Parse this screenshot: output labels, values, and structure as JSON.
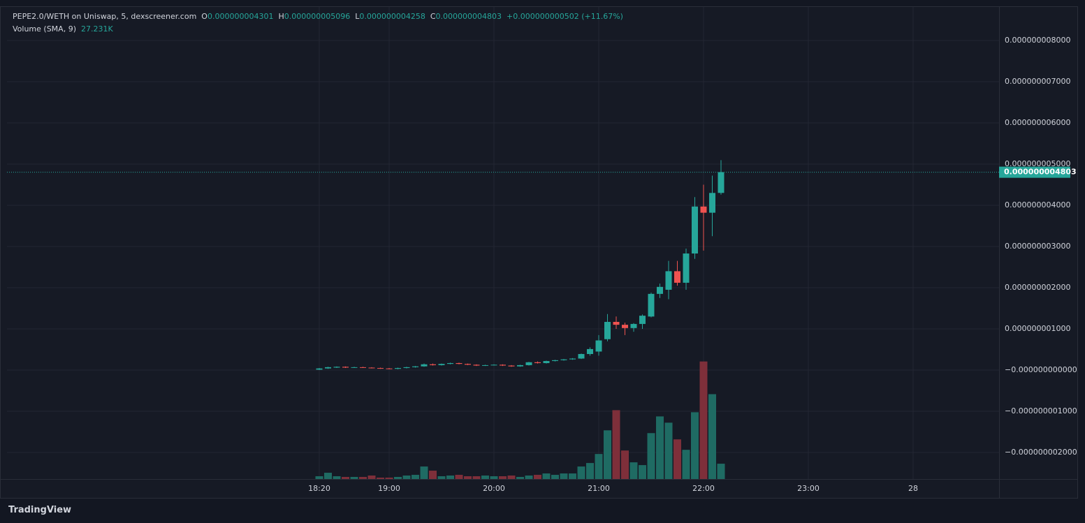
{
  "chart_data": {
    "type": "candlestick",
    "title": "PEPE2.0/WETH on Uniswap, 5, dexscreener.com",
    "ohlc_header": {
      "o_label": "O",
      "o": "0.000000004301",
      "h_label": "H",
      "h": "0.000000005096",
      "l_label": "L",
      "l": "0.000000004258",
      "c_label": "C",
      "c": "0.000000004803",
      "change": "+0.000000000502 (+11.67%)"
    },
    "volume_header": {
      "name": "Volume (SMA, 9)",
      "value": "27.231K"
    },
    "brand": "TradingView",
    "categories": [
      "18:20",
      null,
      null,
      null,
      null,
      null,
      null,
      null,
      "19:00",
      null,
      null,
      null,
      null,
      null,
      null,
      null,
      null,
      null,
      null,
      null,
      "20:00",
      null,
      null,
      null,
      null,
      null,
      null,
      null,
      null,
      null,
      null,
      null,
      "21:00",
      null,
      null,
      null,
      null,
      null,
      null,
      null,
      null,
      null,
      null,
      null,
      "22:00",
      null,
      null,
      null,
      null,
      null,
      null,
      null,
      null,
      null,
      null,
      null,
      "23:00",
      null,
      null,
      null,
      null,
      null,
      null,
      null,
      null,
      null,
      null,
      null,
      "28"
    ],
    "open": [
      1e-11,
      4e-11,
      6e-11,
      8e-11,
      6e-11,
      7e-11,
      6e-11,
      5e-11,
      4e-11,
      3e-11,
      5e-11,
      7e-11,
      9e-11,
      1.4e-10,
      1.2e-10,
      1.5e-10,
      1.7e-10,
      1.5e-10,
      1.3e-10,
      1.1e-10,
      1.2e-10,
      1.3e-10,
      1.1e-10,
      9e-11,
      1.2e-10,
      1.9e-10,
      1.7e-10,
      2.2e-10,
      2.4e-10,
      2.6e-10,
      2.8e-10,
      3.9e-10,
      4.5e-10,
      7.5e-10,
      1.17e-09,
      1.1e-09,
      1.02e-09,
      1.12e-09,
      1.3e-09,
      1.85e-09,
      1.95e-09,
      2.4e-09,
      2.12e-09,
      2.83e-09,
      3.97e-09,
      3.82e-09,
      4.301e-09,
      null,
      null,
      null,
      null,
      null,
      null,
      null,
      null,
      null,
      null,
      null,
      null,
      null,
      null,
      null,
      null,
      null,
      null,
      null,
      null,
      null,
      null
    ],
    "high": [
      5e-11,
      8e-11,
      9e-11,
      9e-11,
      8e-11,
      8e-11,
      7e-11,
      6e-11,
      5e-11,
      6e-11,
      8e-11,
      1e-10,
      1.6e-10,
      1.6e-10,
      1.6e-10,
      1.8e-10,
      1.8e-10,
      1.6e-10,
      1.4e-10,
      1.3e-10,
      1.4e-10,
      1.4e-10,
      1.2e-10,
      1.3e-10,
      2e-10,
      2.1e-10,
      2.3e-10,
      2.5e-10,
      2.7e-10,
      2.9e-10,
      4e-10,
      5.5e-10,
      8.5e-10,
      1.36e-09,
      1.3e-09,
      1.15e-09,
      1.14e-09,
      1.35e-09,
      1.88e-09,
      2.1e-09,
      2.65e-09,
      2.65e-09,
      2.95e-09,
      4.2e-09,
      4.5e-09,
      4.72e-09,
      5.096e-09,
      null,
      null,
      null,
      null,
      null,
      null,
      null,
      null,
      null,
      null,
      null,
      null,
      null,
      null,
      null,
      null,
      null,
      null,
      null,
      null,
      null,
      null
    ],
    "low": [
      0.0,
      3e-11,
      5e-11,
      5e-11,
      5e-11,
      5e-11,
      4e-11,
      3e-11,
      2e-11,
      2e-11,
      4e-11,
      6e-11,
      8e-11,
      1.1e-10,
      1.1e-10,
      1.4e-10,
      1.4e-10,
      1.2e-10,
      1e-10,
      1e-10,
      1.1e-10,
      1e-10,
      8e-11,
      8e-11,
      1.1e-10,
      1.6e-10,
      1.6e-10,
      2.1e-10,
      2.3e-10,
      2.5e-10,
      2.7e-10,
      3.5e-10,
      3.5e-10,
      7e-10,
      1e-09,
      8.5e-10,
      9.3e-10,
      1e-09,
      1.28e-09,
      1.75e-09,
      1.72e-09,
      2.05e-09,
      1.95e-09,
      2.7e-09,
      2.9e-09,
      3.25e-09,
      4.258e-09,
      null,
      null,
      null,
      null,
      null,
      null,
      null,
      null,
      null,
      null,
      null,
      null,
      null,
      null,
      null,
      null,
      null,
      null,
      null,
      null,
      null,
      null
    ],
    "close": [
      4e-11,
      7e-11,
      8e-11,
      6e-11,
      7e-11,
      6e-11,
      5e-11,
      4e-11,
      3e-11,
      5e-11,
      7e-11,
      9e-11,
      1.4e-10,
      1.2e-10,
      1.5e-10,
      1.7e-10,
      1.5e-10,
      1.3e-10,
      1.1e-10,
      1.2e-10,
      1.3e-10,
      1.1e-10,
      9e-11,
      1.2e-10,
      1.9e-10,
      1.7e-10,
      2.2e-10,
      2.4e-10,
      2.6e-10,
      2.8e-10,
      3.9e-10,
      5.1e-10,
      7.2e-10,
      1.17e-09,
      1.1e-09,
      1.02e-09,
      1.12e-09,
      1.32e-09,
      1.85e-09,
      2.02e-09,
      2.4e-09,
      2.12e-09,
      2.83e-09,
      3.97e-09,
      3.82e-09,
      4.3e-09,
      4.803e-09,
      null,
      null,
      null,
      null,
      null,
      null,
      null,
      null,
      null,
      null,
      null,
      null,
      null,
      null,
      null,
      null,
      null,
      null,
      null,
      null,
      null,
      null
    ],
    "volume": [
      1328,
      2988,
      1328,
      996,
      996,
      996,
      1660,
      664,
      664,
      996,
      1660,
      1992,
      5976,
      3984,
      1328,
      1660,
      1992,
      1328,
      1328,
      1660,
      1328,
      1328,
      1660,
      996,
      1660,
      1992,
      2656,
      1992,
      2656,
      2656,
      5976,
      7636,
      11952,
      23240,
      32868,
      13612,
      7968,
      6640,
      21912,
      29880,
      26892,
      18924,
      13944,
      31872,
      56108,
      40504,
      7304,
      null,
      null,
      null,
      null,
      null,
      null,
      null,
      null,
      null,
      null,
      null,
      null,
      null,
      null,
      null,
      null,
      null,
      null,
      null,
      null,
      null,
      null
    ],
    "up_color": "#26a69a",
    "down_color": "#ef5350",
    "volume_up_color": "#1f6b63",
    "volume_down_color": "#7e2f3a",
    "ylim": [
      -2.644e-09,
      8.814e-09
    ],
    "yticks": [
      {
        "value": 8e-09,
        "label": "0.000000008000"
      },
      {
        "value": 7e-09,
        "label": "0.000000007000"
      },
      {
        "value": 6e-09,
        "label": "0.000000006000"
      },
      {
        "value": 5e-09,
        "label": "0.000000005000"
      },
      {
        "value": 4e-09,
        "label": "0.000000004000"
      },
      {
        "value": 3e-09,
        "label": "0.000000003000"
      },
      {
        "value": 2e-09,
        "label": "0.000000002000"
      },
      {
        "value": 1e-09,
        "label": "0.000000001000"
      },
      {
        "value": 0,
        "label": "−0.000000000000"
      },
      {
        "value": -1e-09,
        "label": "−0.000000001000"
      },
      {
        "value": -2e-09,
        "label": "−0.000000002000"
      }
    ],
    "volume_ylim": [
      0,
      60000
    ],
    "last_price": {
      "value": 4.803e-09,
      "label": "0.000000004803"
    },
    "grid": true
  }
}
